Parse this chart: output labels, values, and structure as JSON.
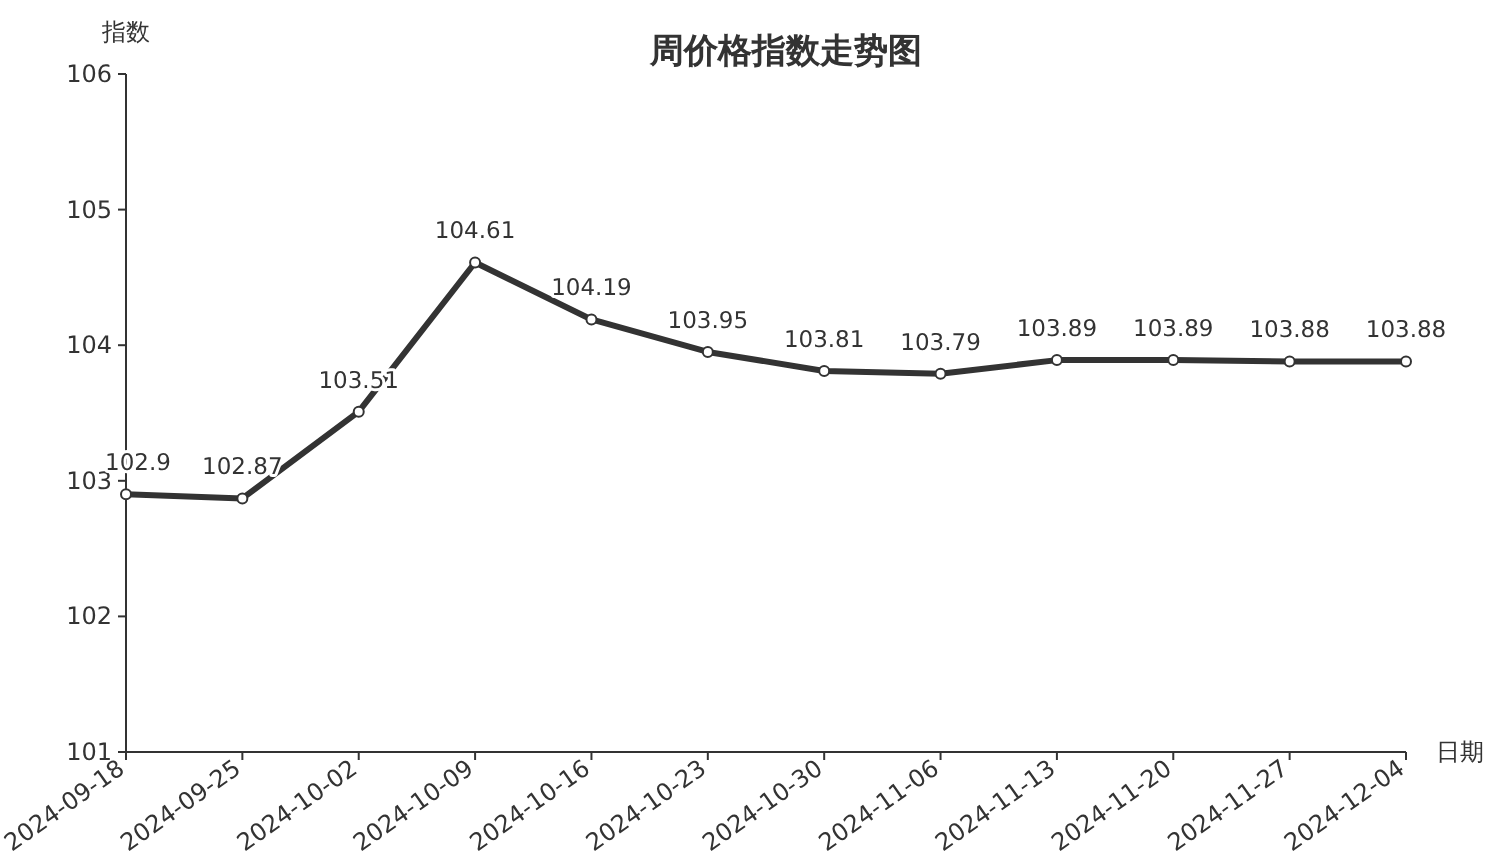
{
  "chart_data": {
    "type": "line",
    "title": "周价格指数走势图",
    "xlabel": "日期",
    "ylabel": "指数",
    "categories": [
      "2024-09-18",
      "2024-09-25",
      "2024-10-02",
      "2024-10-09",
      "2024-10-16",
      "2024-10-23",
      "2024-10-30",
      "2024-11-06",
      "2024-11-13",
      "2024-11-20",
      "2024-11-27",
      "2024-12-04"
    ],
    "values": [
      102.9,
      102.87,
      103.51,
      104.61,
      104.19,
      103.95,
      103.81,
      103.79,
      103.89,
      103.89,
      103.88,
      103.88
    ],
    "color": "#333333",
    "ylim": [
      101,
      106
    ],
    "yticks": [
      101,
      102,
      103,
      104,
      105,
      106
    ],
    "data_labels": true,
    "marker": "circle",
    "line_style": "solid",
    "grid": false
  }
}
